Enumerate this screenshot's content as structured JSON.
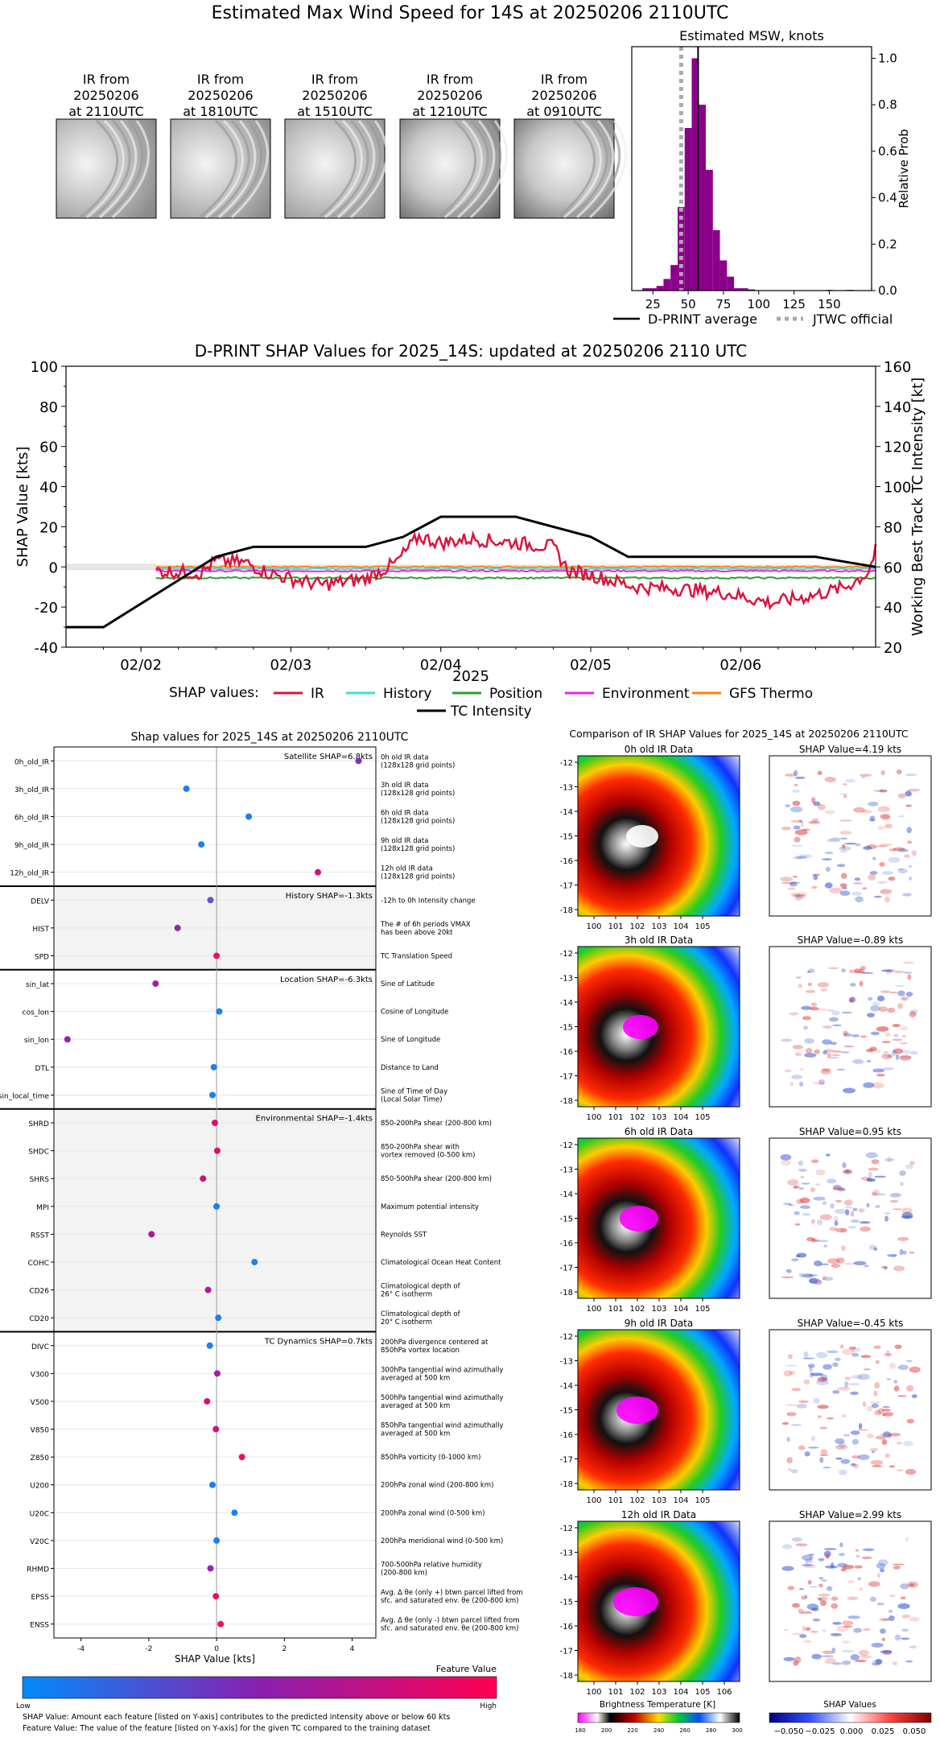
{
  "main_title": "Estimated Max Wind Speed for 14S at 20250206 2110UTC",
  "ir_thumbnails": [
    {
      "label_lines": [
        "IR from",
        "20250206",
        "at 2110UTC"
      ]
    },
    {
      "label_lines": [
        "IR from",
        "20250206",
        "at 1810UTC"
      ]
    },
    {
      "label_lines": [
        "IR from",
        "20250206",
        "at 1510UTC"
      ]
    },
    {
      "label_lines": [
        "IR from",
        "20250206",
        "at 1210UTC"
      ]
    },
    {
      "label_lines": [
        "IR from",
        "20250206",
        "at 0910UTC"
      ]
    }
  ],
  "chart_data": [
    {
      "type": "bar",
      "title": "Estimated MSW, knots",
      "ylabel": "Relative Prob",
      "xlim": [
        10,
        180
      ],
      "ylim": [
        0,
        1.05
      ],
      "xticks": [
        25,
        50,
        75,
        100,
        125,
        150
      ],
      "yticks": [
        0.0,
        0.2,
        0.4,
        0.6,
        0.8,
        1.0
      ],
      "bin_width": 5,
      "bins": [
        {
          "x": 20,
          "y": 0.01
        },
        {
          "x": 25,
          "y": 0.01
        },
        {
          "x": 30,
          "y": 0.02
        },
        {
          "x": 35,
          "y": 0.05
        },
        {
          "x": 40,
          "y": 0.11
        },
        {
          "x": 45,
          "y": 0.36
        },
        {
          "x": 50,
          "y": 0.7
        },
        {
          "x": 55,
          "y": 1.0
        },
        {
          "x": 60,
          "y": 0.8
        },
        {
          "x": 65,
          "y": 0.52
        },
        {
          "x": 70,
          "y": 0.26
        },
        {
          "x": 75,
          "y": 0.13
        },
        {
          "x": 80,
          "y": 0.06
        },
        {
          "x": 85,
          "y": 0.01
        },
        {
          "x": 90,
          "y": 0.01
        },
        {
          "x": 95,
          "y": 0.005
        },
        {
          "x": 150,
          "y": 0.003
        },
        {
          "x": 165,
          "y": 0.003
        }
      ],
      "dprint_average": 57,
      "jtwc_official": 45,
      "bar_color": "#8b008b",
      "legend": [
        {
          "label": "D-PRINT average",
          "style": "solid",
          "color": "#000000"
        },
        {
          "label": "JTWC official",
          "style": "dotted",
          "color": "#aaaaaa"
        }
      ]
    },
    {
      "type": "line",
      "title": "D-PRINT SHAP Values for 2025_14S: updated at 20250206 2110 UTC",
      "xlabel": "2025",
      "ylabel": "SHAP Value [kts]",
      "ylabel_right": "Working Best Track TC Intensity [kt]",
      "ylim": [
        -40,
        100
      ],
      "ylim_right": [
        20,
        160
      ],
      "yticks": [
        -40,
        -20,
        0,
        20,
        40,
        60,
        80,
        100
      ],
      "yticks_right": [
        20,
        40,
        60,
        80,
        100,
        120,
        140,
        160
      ],
      "xlim": [
        -0.5,
        4.9
      ],
      "xticks": [
        {
          "x": 0,
          "label": "02/02"
        },
        {
          "x": 1,
          "label": "02/03"
        },
        {
          "x": 2,
          "label": "02/04"
        },
        {
          "x": 3,
          "label": "02/05"
        },
        {
          "x": 4,
          "label": "02/06"
        }
      ],
      "legend_prefix": "SHAP values:",
      "series": [
        {
          "name": "IR",
          "color": "#dc143c"
        },
        {
          "name": "History",
          "color": "#40e0d0"
        },
        {
          "name": "Position",
          "color": "#2ca02c"
        },
        {
          "name": "Environment",
          "color": "#ee22ee"
        },
        {
          "name": "GFS Thermo",
          "color": "#ff7f0e"
        },
        {
          "name": "TC Intensity",
          "color": "#000000"
        }
      ],
      "tc_intensity": [
        [
          -0.5,
          30
        ],
        [
          -0.25,
          30
        ],
        [
          0.5,
          65
        ],
        [
          0.75,
          70
        ],
        [
          1.5,
          70
        ],
        [
          1.75,
          75
        ],
        [
          2.0,
          85
        ],
        [
          2.5,
          85
        ],
        [
          3.0,
          75
        ],
        [
          3.25,
          65
        ],
        [
          4.5,
          65
        ],
        [
          4.9,
          60
        ]
      ],
      "ir_anchor": [
        [
          0.1,
          -2
        ],
        [
          0.4,
          -3
        ],
        [
          0.5,
          3
        ],
        [
          0.7,
          2
        ],
        [
          0.85,
          -3
        ],
        [
          1.0,
          -6
        ],
        [
          1.2,
          -9
        ],
        [
          1.5,
          -6
        ],
        [
          1.7,
          2
        ],
        [
          1.85,
          15
        ],
        [
          2.0,
          12
        ],
        [
          2.2,
          14
        ],
        [
          2.5,
          12
        ],
        [
          2.75,
          10
        ],
        [
          2.85,
          -2
        ],
        [
          3.0,
          -4
        ],
        [
          3.3,
          -10
        ],
        [
          3.6,
          -11
        ],
        [
          3.9,
          -13
        ],
        [
          4.2,
          -18
        ],
        [
          4.5,
          -14
        ],
        [
          4.7,
          -10
        ],
        [
          4.85,
          -3
        ],
        [
          4.9,
          8
        ]
      ],
      "position_level": -5.5,
      "environment_level": -2,
      "history_level": -1,
      "gfs_level": 0
    },
    {
      "type": "scatter",
      "title": "Shap values for 2025_14S at 20250206 2110UTC",
      "xlabel": "SHAP Value [kts]",
      "xlim": [
        -4.8,
        4.7
      ],
      "xticks": [
        -4,
        -2,
        0,
        2,
        4
      ],
      "groups": [
        {
          "title": "Satellite SHAP=6.8kts",
          "shaded": false,
          "features": [
            {
              "name": "0h_old_IR",
              "value": 4.19,
              "color": "#7b2fbe",
              "desc": [
                "0h old IR data",
                "(128x128 grid points)"
              ]
            },
            {
              "name": "3h_old_IR",
              "value": -0.89,
              "color": "#1e7ff0",
              "desc": [
                "3h old IR data",
                "(128x128 grid points)"
              ]
            },
            {
              "name": "6h_old_IR",
              "value": 0.95,
              "color": "#1e7ff0",
              "desc": [
                "6h old IR data",
                "(128x128 grid points)"
              ]
            },
            {
              "name": "9h_old_IR",
              "value": -0.45,
              "color": "#1e7ff0",
              "desc": [
                "9h old IR data",
                "(128x128 grid points)"
              ]
            },
            {
              "name": "12h_old_IR",
              "value": 2.99,
              "color": "#d0107a",
              "desc": [
                "12h old IR data",
                "(128x128 grid points)"
              ]
            }
          ]
        },
        {
          "title": "History SHAP=-1.3kts",
          "shaded": true,
          "features": [
            {
              "name": "DELV",
              "value": -0.18,
              "color": "#6a4fd8",
              "desc": [
                "-12h to 0h Intensity change"
              ]
            },
            {
              "name": "HIST",
              "value": -1.15,
              "color": "#8e2ab0",
              "desc": [
                "The # of 6h periods VMAX",
                "has been above 20kt"
              ]
            },
            {
              "name": "SPD",
              "value": 0.0,
              "color": "#f0105a",
              "desc": [
                "TC Translation Speed"
              ]
            }
          ]
        },
        {
          "title": "Location SHAP=-6.3kts",
          "shaded": false,
          "features": [
            {
              "name": "sin_lat",
              "value": -1.8,
              "color": "#b0189a",
              "desc": [
                "Sine of Latitude"
              ]
            },
            {
              "name": "cos_lon",
              "value": 0.08,
              "color": "#1e7ff0",
              "desc": [
                "Cosine of Longitude"
              ]
            },
            {
              "name": "sin_lon",
              "value": -4.4,
              "color": "#9a20b0",
              "desc": [
                "Sine of Longitude"
              ]
            },
            {
              "name": "DTL",
              "value": -0.08,
              "color": "#1e7ff0",
              "desc": [
                "Distance to Land"
              ]
            },
            {
              "name": "sin_local_time",
              "value": -0.12,
              "color": "#1e7ff0",
              "desc": [
                "Sine of Time of Day",
                "(Local Solar Time)"
              ]
            }
          ]
        },
        {
          "title": "Environmental SHAP=-1.4kts",
          "shaded": true,
          "features": [
            {
              "name": "SHRD",
              "value": -0.05,
              "color": "#e0106a",
              "desc": [
                "850-200hPa shear (200-800 km)"
              ]
            },
            {
              "name": "SHDC",
              "value": 0.02,
              "color": "#e0106a",
              "desc": [
                "850-200hPa shear with",
                "vortex removed (0-500 km)"
              ]
            },
            {
              "name": "SHRS",
              "value": -0.4,
              "color": "#d0107a",
              "desc": [
                "850-500hPa shear (200-800 km)"
              ]
            },
            {
              "name": "MPI",
              "value": 0.0,
              "color": "#1e7ff0",
              "desc": [
                "Maximum potential intensity"
              ]
            },
            {
              "name": "RSST",
              "value": -1.92,
              "color": "#b0189a",
              "desc": [
                "Reynolds SST"
              ]
            },
            {
              "name": "COHC",
              "value": 1.12,
              "color": "#1e7ff0",
              "desc": [
                "Climatological Ocean Heat Content"
              ]
            },
            {
              "name": "CD26",
              "value": -0.25,
              "color": "#b0189a",
              "desc": [
                "Climatological depth of",
                "26° C isotherm"
              ]
            },
            {
              "name": "CD20",
              "value": 0.05,
              "color": "#1e7ff0",
              "desc": [
                "Climatological depth of",
                "20° C isotherm"
              ]
            }
          ]
        },
        {
          "title": "TC Dynamics SHAP=0.7kts",
          "shaded": false,
          "features": [
            {
              "name": "DIVC",
              "value": -0.2,
              "color": "#1e7ff0",
              "desc": [
                "200hPa divergence centered at",
                "850hPa vortex location"
              ]
            },
            {
              "name": "V300",
              "value": 0.02,
              "color": "#a020a0",
              "desc": [
                "300hPa tangential wind azimuthally",
                "averaged at 500 km"
              ]
            },
            {
              "name": "V500",
              "value": -0.28,
              "color": "#d0107a",
              "desc": [
                "500hPa tangential wind azimuthally",
                "averaged at 500 km"
              ]
            },
            {
              "name": "V850",
              "value": -0.02,
              "color": "#d0107a",
              "desc": [
                "850hPa tangential wind azimuthally",
                "averaged at 500 km"
              ]
            },
            {
              "name": "Z850",
              "value": 0.75,
              "color": "#f0105a",
              "desc": [
                "850hPa vorticity (0-1000 km)"
              ]
            },
            {
              "name": "U200",
              "value": -0.12,
              "color": "#1e7ff0",
              "desc": [
                "200hPa zonal wind (200-800 km)"
              ]
            },
            {
              "name": "U20C",
              "value": 0.53,
              "color": "#1e7ff0",
              "desc": [
                "200hPa zonal wind (0-500 km)"
              ]
            },
            {
              "name": "V20C",
              "value": 0.0,
              "color": "#1e7ff0",
              "desc": [
                "200hPa meridional wind (0-500 km)"
              ]
            },
            {
              "name": "RHMD",
              "value": -0.18,
              "color": "#9a20b0",
              "desc": [
                "700-500hPa relative humidity",
                "(200-800 km)"
              ]
            },
            {
              "name": "EPSS",
              "value": -0.02,
              "color": "#f0105a",
              "desc": [
                "Avg. Δ θe (only +) btwn parcel lifted from",
                "sfc. and saturated env. θe (200-800 km)"
              ]
            },
            {
              "name": "ENSS",
              "value": 0.12,
              "color": "#f0105a",
              "desc": [
                "Avg. Δ θe (only -) btwn parcel lifted from",
                "sfc. and saturated env. θe (200-800 km)"
              ]
            }
          ]
        }
      ]
    }
  ],
  "feature_colorbar": {
    "title": "Feature Value",
    "low": "Low",
    "high": "High"
  },
  "footnotes": [
    "SHAP Value: Amount each feature [listed on Y-axis] contributes to the predicted intensity above or below 60 kts",
    "Feature Value: The value of the feature [listed on Y-axis] for the given TC compared to the training dataset"
  ],
  "ir_comparison": {
    "title": "Comparison of IR SHAP Values for 2025_14S at 20250206 2110UTC",
    "rows": [
      {
        "ir_title": "0h old IR Data",
        "shap_title": "SHAP Value=4.19 kts"
      },
      {
        "ir_title": "3h old IR Data",
        "shap_title": "SHAP Value=-0.89 kts"
      },
      {
        "ir_title": "6h old IR Data",
        "shap_title": "SHAP Value=0.95 kts"
      },
      {
        "ir_title": "9h old IR Data",
        "shap_title": "SHAP Value=-0.45 kts"
      },
      {
        "ir_title": "12h old IR Data",
        "shap_title": "SHAP Value=2.99 kts"
      }
    ],
    "lat_ticks": [
      "-12",
      "-13",
      "-14",
      "-15",
      "-16",
      "-17",
      "-18"
    ],
    "lon_ticks": [
      "100",
      "101",
      "102",
      "103",
      "104",
      "105"
    ],
    "lon_ticks_last": [
      "100",
      "101",
      "102",
      "103",
      "104",
      "105",
      "106"
    ],
    "bt_colorbar": {
      "title": "Brightness Temperature [K]",
      "ticks": [
        "180",
        "200",
        "220",
        "240",
        "260",
        "280",
        "300"
      ]
    },
    "shap_colorbar": {
      "title": "SHAP Values",
      "ticks": [
        "−0.050",
        "−0.025",
        "0.000",
        "0.025",
        "0.050"
      ]
    }
  }
}
